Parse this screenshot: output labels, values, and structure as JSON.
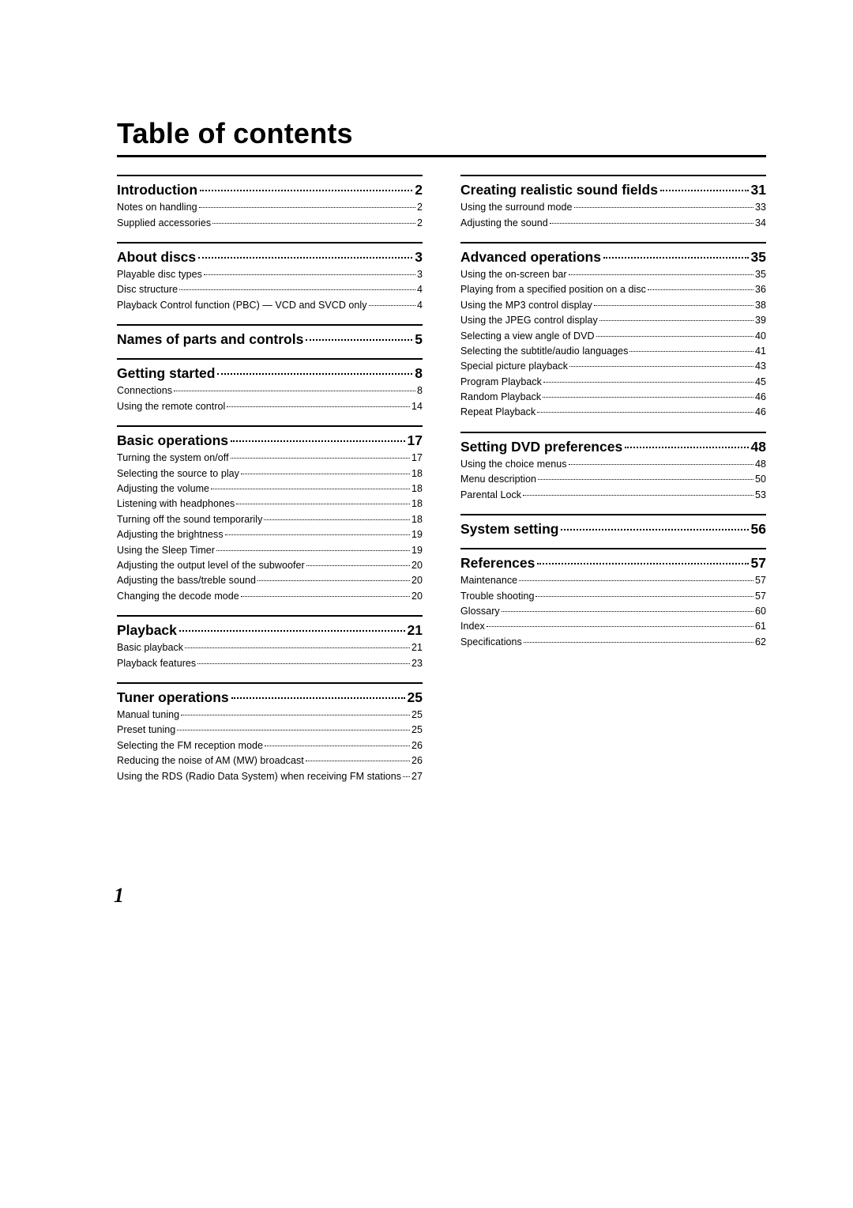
{
  "title": "Table of contents",
  "page_number": "1",
  "columns": [
    {
      "sections": [
        {
          "title": "Introduction",
          "page": "2",
          "entries": [
            {
              "label": "Notes on handling",
              "page": "2"
            },
            {
              "label": "Supplied accessories",
              "page": "2"
            }
          ]
        },
        {
          "title": "About discs",
          "page": "3",
          "entries": [
            {
              "label": "Playable disc types",
              "page": "3"
            },
            {
              "label": "Disc structure",
              "page": "4"
            },
            {
              "label": "Playback Control function (PBC) — VCD and SVCD only",
              "page": "4"
            }
          ]
        },
        {
          "title": "Names of parts and controls",
          "page": "5",
          "standalone": true,
          "entries": []
        },
        {
          "title": "Getting started",
          "page": "8",
          "entries": [
            {
              "label": "Connections",
              "page": "8"
            },
            {
              "label": "Using the remote control",
              "page": "14"
            }
          ]
        },
        {
          "title": "Basic operations",
          "page": "17",
          "entries": [
            {
              "label": "Turning the system on/off",
              "page": "17"
            },
            {
              "label": "Selecting the source to play",
              "page": "18"
            },
            {
              "label": "Adjusting the volume",
              "page": "18"
            },
            {
              "label": "Listening with headphones",
              "page": "18"
            },
            {
              "label": "Turning off the sound temporarily",
              "page": "18"
            },
            {
              "label": "Adjusting the brightness",
              "page": "19"
            },
            {
              "label": "Using the Sleep Timer",
              "page": "19"
            },
            {
              "label": "Adjusting the output level of the subwoofer",
              "page": "20"
            },
            {
              "label": "Adjusting the bass/treble sound",
              "page": "20"
            },
            {
              "label": "Changing the decode mode",
              "page": "20"
            }
          ]
        },
        {
          "title": "Playback",
          "page": "21",
          "entries": [
            {
              "label": "Basic playback",
              "page": "21"
            },
            {
              "label": "Playback features",
              "page": "23"
            }
          ]
        },
        {
          "title": "Tuner operations",
          "page": "25",
          "entries": [
            {
              "label": "Manual tuning",
              "page": "25"
            },
            {
              "label": "Preset tuning",
              "page": "25"
            },
            {
              "label": "Selecting the FM reception mode",
              "page": "26"
            },
            {
              "label": "Reducing the noise of AM (MW) broadcast",
              "page": "26"
            },
            {
              "label": "Using the RDS (Radio Data System) when receiving FM stations",
              "page": "27"
            }
          ]
        }
      ]
    },
    {
      "sections": [
        {
          "title": "Creating realistic sound fields",
          "page": "31",
          "entries": [
            {
              "label": "Using the surround mode",
              "page": "33"
            },
            {
              "label": "Adjusting the sound",
              "page": "34"
            }
          ]
        },
        {
          "title": "Advanced operations",
          "page": "35",
          "entries": [
            {
              "label": "Using the on-screen bar",
              "page": "35"
            },
            {
              "label": "Playing from a specified position on a disc",
              "page": "36"
            },
            {
              "label": "Using the MP3 control display",
              "page": "38"
            },
            {
              "label": "Using the JPEG control display",
              "page": "39"
            },
            {
              "label": "Selecting a view angle of DVD",
              "page": "40"
            },
            {
              "label": "Selecting the subtitle/audio languages",
              "page": "41"
            },
            {
              "label": "Special picture playback",
              "page": "43"
            },
            {
              "label": "Program Playback",
              "page": "45"
            },
            {
              "label": "Random Playback",
              "page": "46"
            },
            {
              "label": "Repeat Playback",
              "page": "46"
            }
          ]
        },
        {
          "title": "Setting DVD preferences",
          "page": "48",
          "entries": [
            {
              "label": "Using the choice menus",
              "page": "48"
            },
            {
              "label": "Menu description",
              "page": "50"
            },
            {
              "label": "Parental Lock",
              "page": "53"
            }
          ]
        },
        {
          "title": "System setting",
          "page": "56",
          "standalone": true,
          "entries": []
        },
        {
          "title": "References",
          "page": "57",
          "entries": [
            {
              "label": "Maintenance",
              "page": "57"
            },
            {
              "label": "Trouble shooting",
              "page": "57"
            },
            {
              "label": "Glossary",
              "page": "60"
            },
            {
              "label": "Index",
              "page": "61"
            },
            {
              "label": "Specifications",
              "page": "62"
            }
          ]
        }
      ]
    }
  ]
}
